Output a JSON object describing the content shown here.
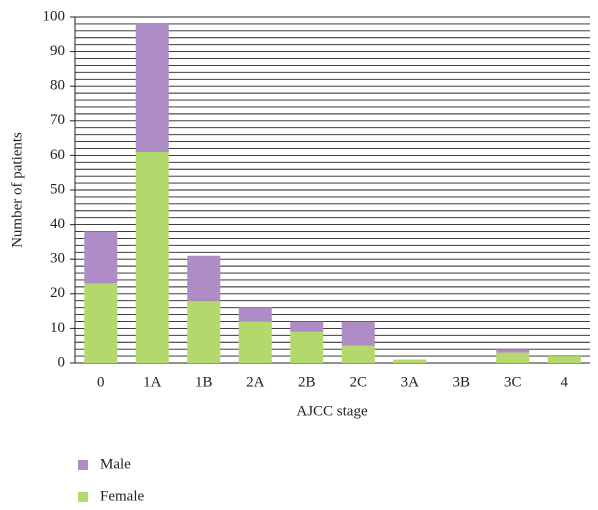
{
  "chart_data": {
    "type": "stacked_bar",
    "x_label": "AJCC stage",
    "y_label": "Number of patients",
    "categories": [
      "0",
      "1A",
      "1B",
      "2A",
      "2B",
      "2C",
      "3A",
      "3B",
      "3C",
      "4"
    ],
    "series": [
      {
        "name": "Female",
        "color": "#b3d86c",
        "values": [
          23,
          61,
          18,
          12,
          9,
          5,
          1,
          0,
          3,
          2
        ]
      },
      {
        "name": "Male",
        "color": "#ae8cc6",
        "values": [
          15,
          37,
          13,
          4,
          3,
          7,
          0,
          0,
          1,
          0
        ]
      }
    ],
    "ylim": [
      0,
      100
    ],
    "yticks": [
      0,
      10,
      20,
      30,
      40,
      50,
      60,
      70,
      80,
      90,
      100
    ],
    "grid": true,
    "grid_step": 2,
    "legend": "bottom-left"
  }
}
